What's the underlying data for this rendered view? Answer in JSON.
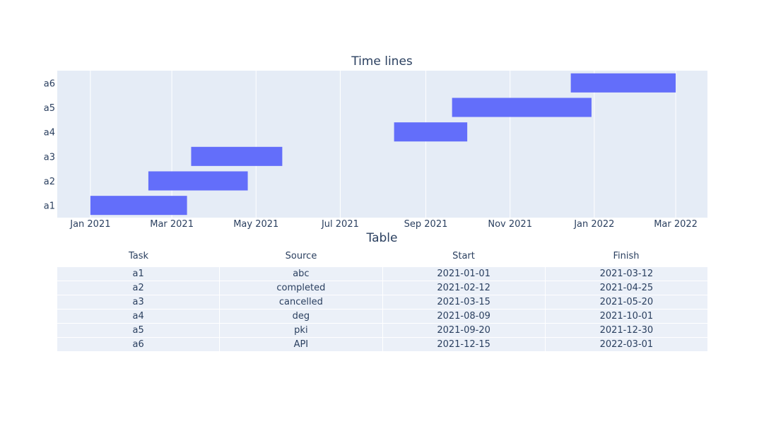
{
  "colors": {
    "bar": "#636efa",
    "plot_bg": "#e5ecf6",
    "grid": "#ffffff",
    "text": "#2a3f5f",
    "table_row": "#ebf0f8"
  },
  "timeline": {
    "title": "Time lines",
    "chart_data": {
      "type": "bar",
      "orientation": "horizontal-gantt",
      "title": "Time lines",
      "xlabel": "",
      "ylabel": "",
      "categories": [
        "a1",
        "a2",
        "a3",
        "a4",
        "a5",
        "a6"
      ],
      "tasks": [
        {
          "task": "a1",
          "start": "2021-01-01",
          "finish": "2021-03-12"
        },
        {
          "task": "a2",
          "start": "2021-02-12",
          "finish": "2021-04-25"
        },
        {
          "task": "a3",
          "start": "2021-03-15",
          "finish": "2021-05-20"
        },
        {
          "task": "a4",
          "start": "2021-08-09",
          "finish": "2021-10-01"
        },
        {
          "task": "a5",
          "start": "2021-09-20",
          "finish": "2021-12-30"
        },
        {
          "task": "a6",
          "start": "2021-12-15",
          "finish": "2022-03-01"
        }
      ],
      "xlim": [
        "2020-12-08",
        "2022-03-24"
      ],
      "x_ticks": [
        {
          "date": "2021-01-01",
          "label": "Jan 2021"
        },
        {
          "date": "2021-03-01",
          "label": "Mar 2021"
        },
        {
          "date": "2021-05-01",
          "label": "May 2021"
        },
        {
          "date": "2021-07-01",
          "label": "Jul 2021"
        },
        {
          "date": "2021-09-01",
          "label": "Sep 2021"
        },
        {
          "date": "2021-11-01",
          "label": "Nov 2021"
        },
        {
          "date": "2022-01-01",
          "label": "Jan 2022"
        },
        {
          "date": "2022-03-01",
          "label": "Mar 2022"
        }
      ],
      "grid": true,
      "legend": false
    }
  },
  "table": {
    "title": "Table",
    "headers": [
      "Task",
      "Source",
      "Start",
      "Finish"
    ],
    "rows": [
      [
        "a1",
        "abc",
        "2021-01-01",
        "2021-03-12"
      ],
      [
        "a2",
        "completed",
        "2021-02-12",
        "2021-04-25"
      ],
      [
        "a3",
        "cancelled",
        "2021-03-15",
        "2021-05-20"
      ],
      [
        "a4",
        "deg",
        "2021-08-09",
        "2021-10-01"
      ],
      [
        "a5",
        "pki",
        "2021-09-20",
        "2021-12-30"
      ],
      [
        "a6",
        "API",
        "2021-12-15",
        "2022-03-01"
      ]
    ]
  }
}
